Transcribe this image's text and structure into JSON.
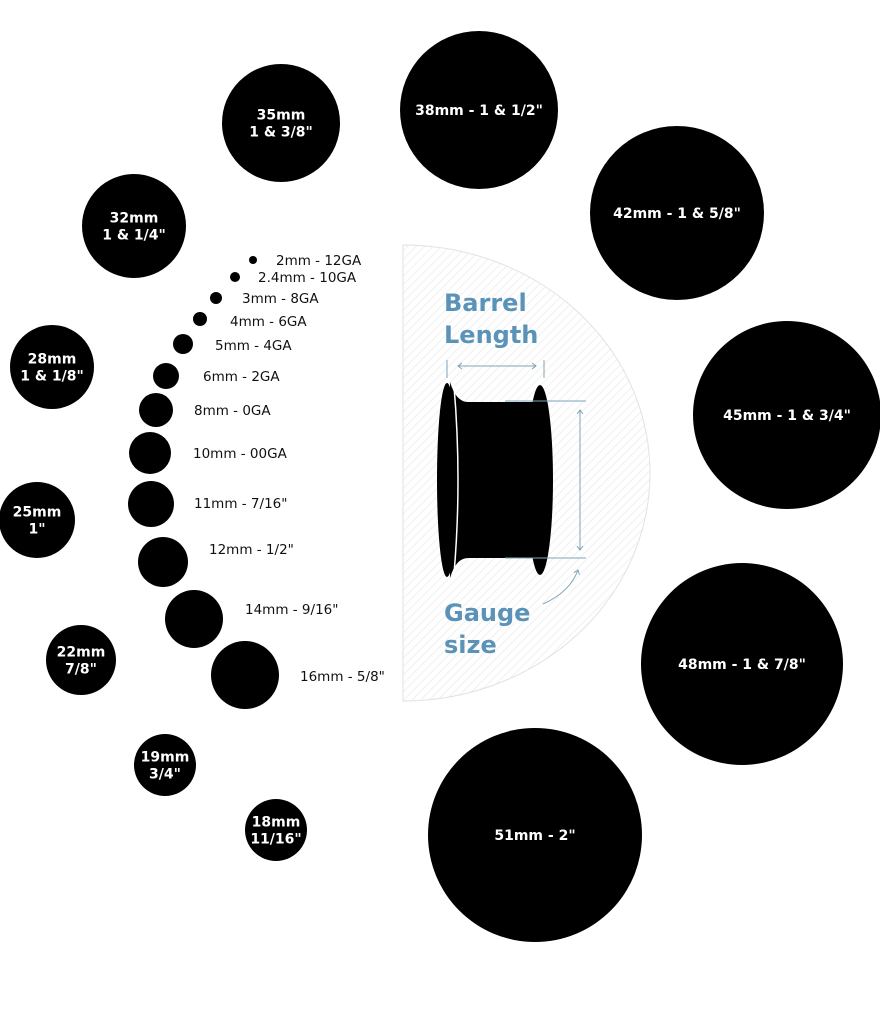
{
  "diagram": {
    "accent_color": "#5b93b8",
    "plug_illustration": {
      "barrel_length_label": [
        "Barrel",
        "Length"
      ],
      "gauge_size_label": [
        "Gauge",
        "size"
      ]
    },
    "small_sizes": [
      {
        "label": "2mm - 12GA",
        "mm": 2
      },
      {
        "label": "2.4mm - 10GA",
        "mm": 2.4
      },
      {
        "label": "3mm - 8GA",
        "mm": 3
      },
      {
        "label": "4mm - 6GA",
        "mm": 4
      },
      {
        "label": "5mm - 4GA",
        "mm": 5
      },
      {
        "label": "6mm - 2GA",
        "mm": 6
      },
      {
        "label": "8mm - 0GA",
        "mm": 8
      },
      {
        "label": "10mm - 00GA",
        "mm": 10
      },
      {
        "label": "11mm - 7/16\"",
        "mm": 11
      },
      {
        "label": "12mm - 1/2\"",
        "mm": 12
      },
      {
        "label": "14mm - 9/16\"",
        "mm": 14
      },
      {
        "label": "16mm - 5/8\"",
        "mm": 16
      }
    ],
    "large_sizes": [
      {
        "lines": [
          "18mm",
          "11/16\""
        ],
        "mm": 18
      },
      {
        "lines": [
          "19mm",
          "3/4\""
        ],
        "mm": 19
      },
      {
        "lines": [
          "22mm",
          "7/8\""
        ],
        "mm": 22
      },
      {
        "lines": [
          "25mm",
          "1\""
        ],
        "mm": 25
      },
      {
        "lines": [
          "28mm",
          "1 & 1/8\""
        ],
        "mm": 28
      },
      {
        "lines": [
          "32mm",
          "1 & 1/4\""
        ],
        "mm": 32
      },
      {
        "lines": [
          "35mm",
          "1 & 3/8\""
        ],
        "mm": 35
      },
      {
        "lines": [
          "38mm - 1 & 1/2\""
        ],
        "mm": 38
      },
      {
        "lines": [
          "42mm - 1 & 5/8\""
        ],
        "mm": 42
      },
      {
        "lines": [
          "45mm - 1 & 3/4\""
        ],
        "mm": 45
      },
      {
        "lines": [
          "48mm - 1 & 7/8\""
        ],
        "mm": 48
      },
      {
        "lines": [
          "51mm - 2\""
        ],
        "mm": 51
      }
    ]
  }
}
